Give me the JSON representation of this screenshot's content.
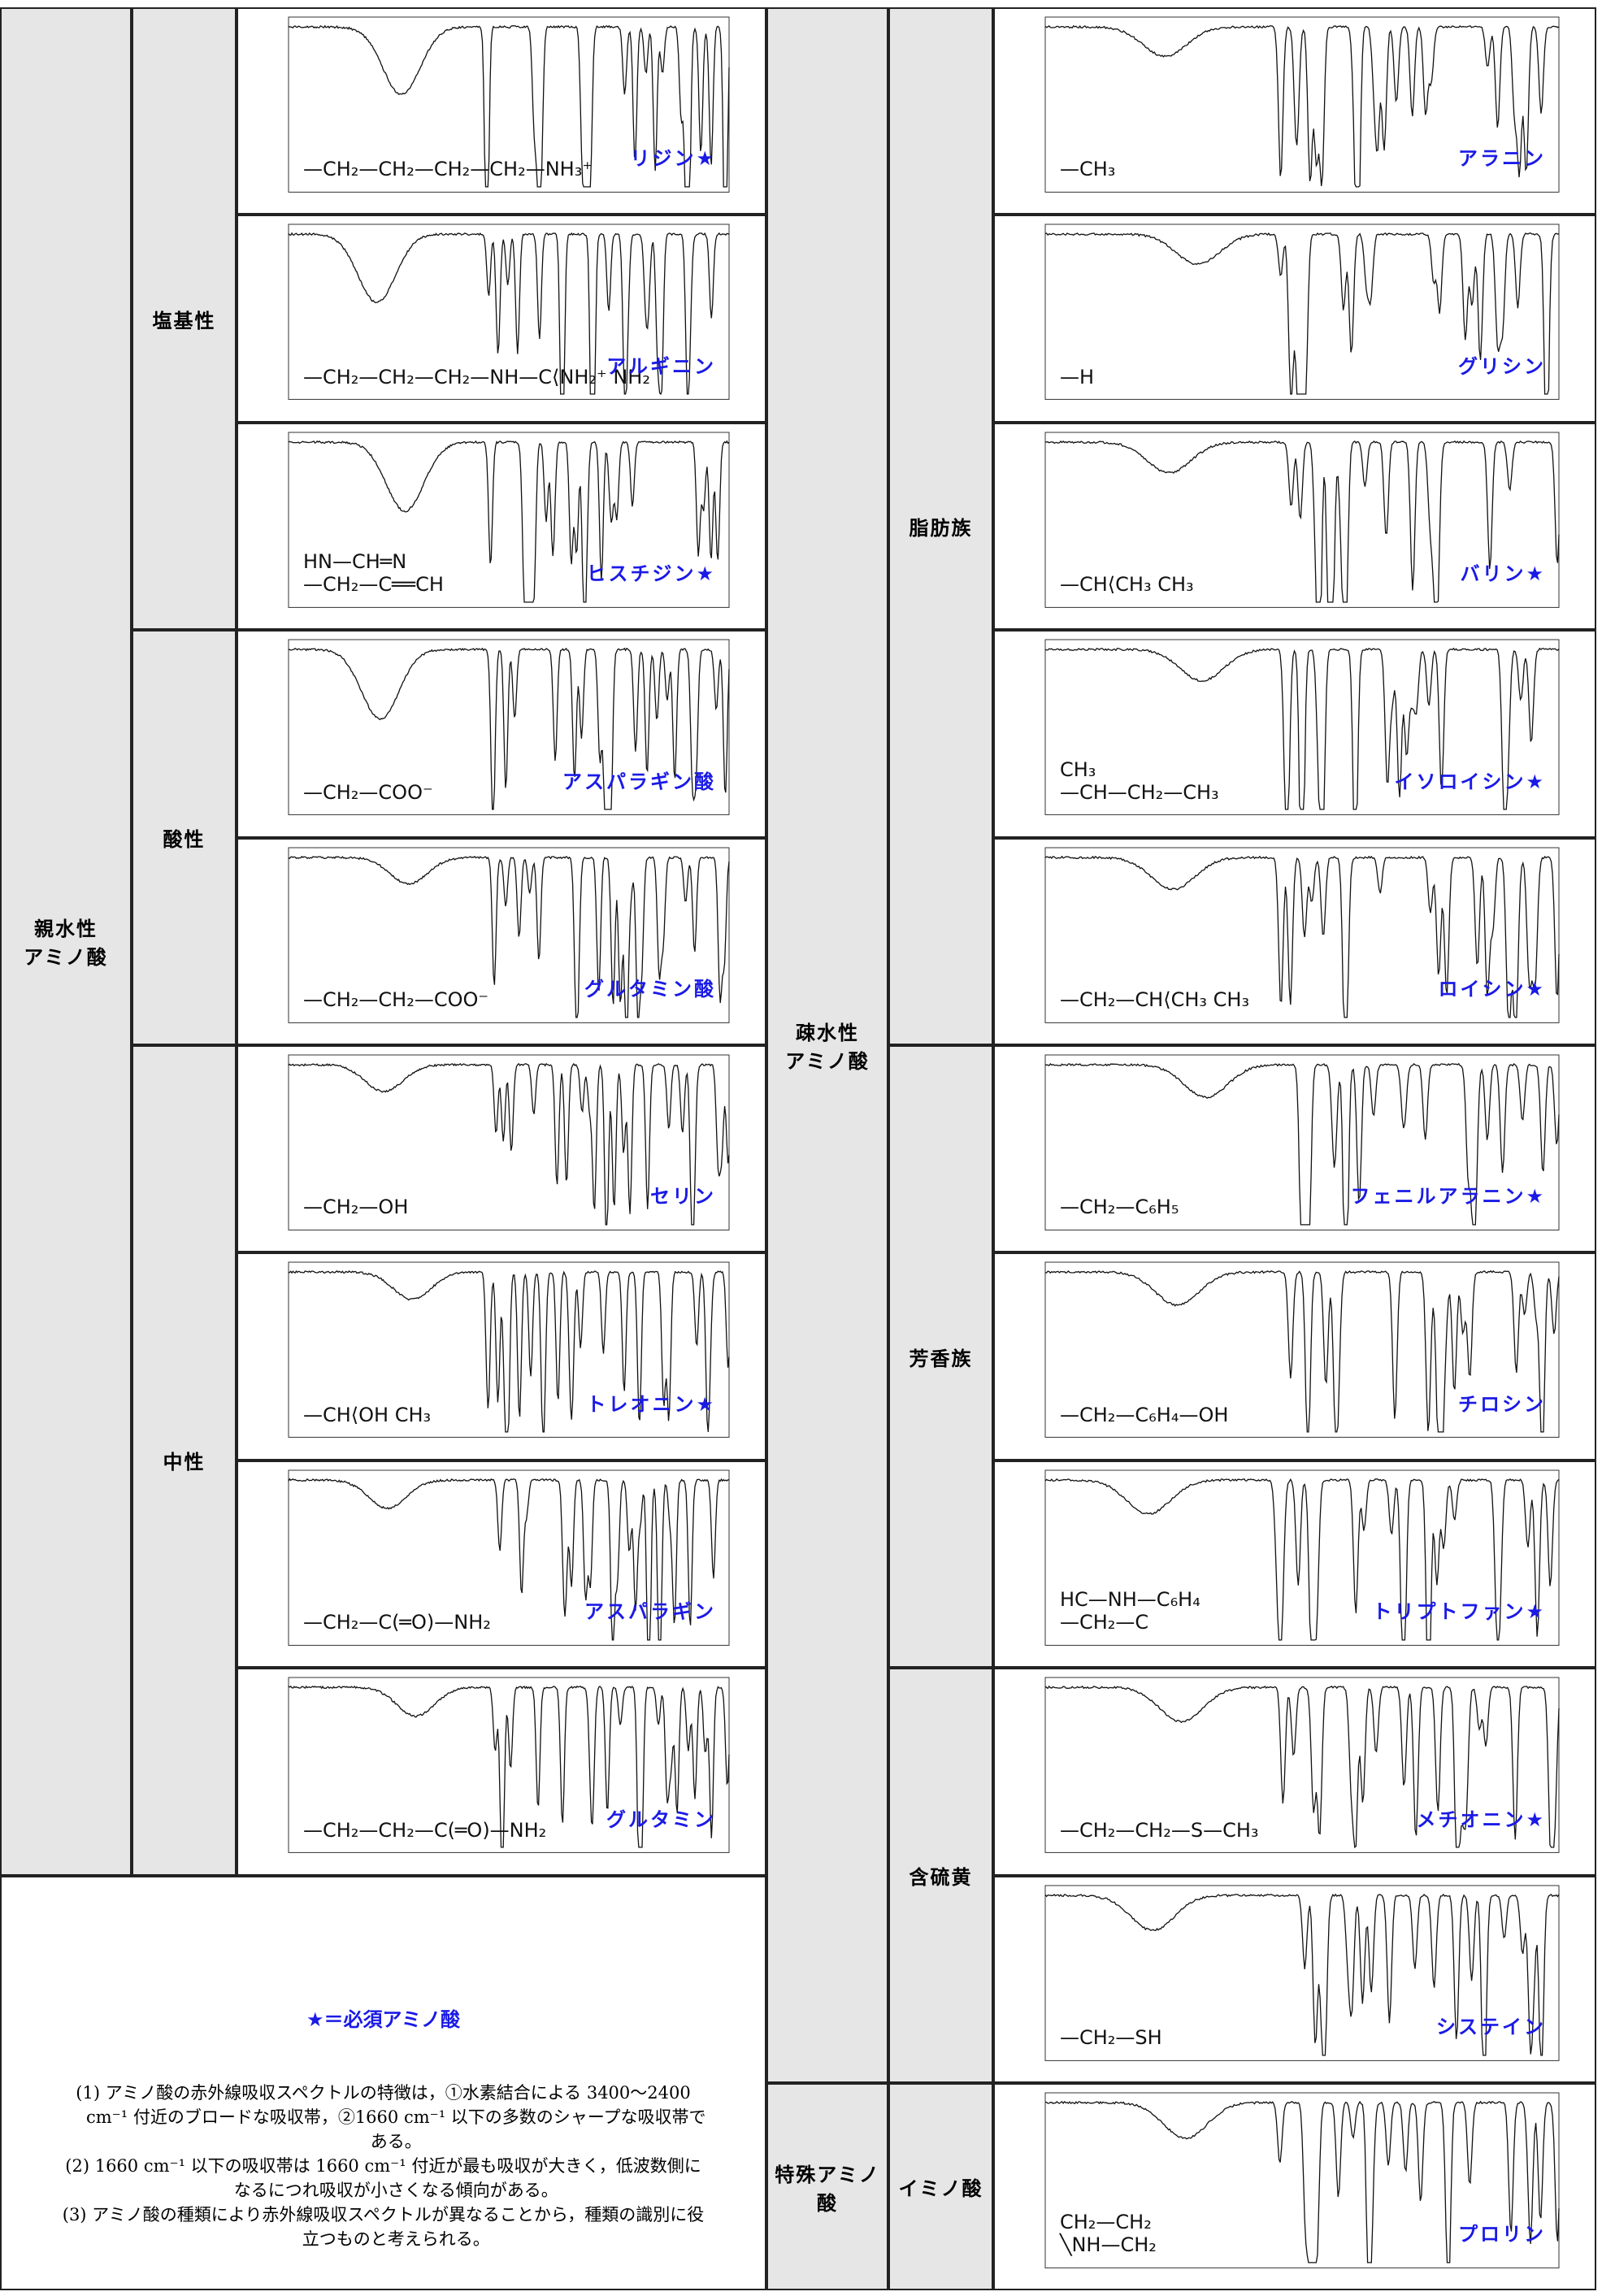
{
  "left": {
    "group": "親水性\nアミノ酸",
    "subgroups": [
      {
        "label": "塩基性",
        "items": [
          {
            "name": "リジン★",
            "formula": "—CH₂—CH₂—CH₂—CH₂—NH₃⁺"
          },
          {
            "name": "アルギニン",
            "formula": "—CH₂—CH₂—CH₂—NH—C⟨NH₂⁺ NH₂"
          },
          {
            "name": "ヒスチジン★",
            "formula": "HN—CH═N\n—CH₂—C══CH"
          }
        ]
      },
      {
        "label": "酸性",
        "items": [
          {
            "name": "アスパラギン酸",
            "formula": "—CH₂—COO⁻"
          },
          {
            "name": "グルタミン酸",
            "formula": "—CH₂—CH₂—COO⁻"
          }
        ]
      },
      {
        "label": "中性",
        "items": [
          {
            "name": "セリン",
            "formula": "—CH₂—OH"
          },
          {
            "name": "トレオニン★",
            "formula": "—CH⟨OH CH₃"
          },
          {
            "name": "アスパラギン",
            "formula": "—CH₂—C(═O)—NH₂"
          },
          {
            "name": "グルタミン",
            "formula": "—CH₂—CH₂—C(═O)—NH₂"
          }
        ]
      }
    ]
  },
  "right": {
    "group": "疎水性\nアミノ酸",
    "subgroups": [
      {
        "label": "脂肪族",
        "items": [
          {
            "name": "アラニン",
            "formula": "—CH₃"
          },
          {
            "name": "グリシン",
            "formula": "—H"
          },
          {
            "name": "バリン★",
            "formula": "—CH⟨CH₃ CH₃"
          },
          {
            "name": "イソロイシン★",
            "formula": "CH₃\n—CH—CH₂—CH₃"
          },
          {
            "name": "ロイシン★",
            "formula": "—CH₂—CH⟨CH₃ CH₃"
          }
        ]
      },
      {
        "label": "芳香族",
        "items": [
          {
            "name": "フェニルアラニン★",
            "formula": "—CH₂—C₆H₅"
          },
          {
            "name": "チロシン",
            "formula": "—CH₂—C₆H₄—OH"
          },
          {
            "name": "トリプトファン★",
            "formula": "HC—NH—C₆H₄\n—CH₂—C"
          }
        ]
      },
      {
        "label": "含硫黄",
        "items": [
          {
            "name": "メチオニン★",
            "formula": "—CH₂—CH₂—S—CH₃"
          },
          {
            "name": "システイン",
            "formula": "—CH₂—SH"
          }
        ]
      }
    ]
  },
  "special": {
    "group": "特殊アミノ酸",
    "label": "イミノ酸",
    "items": [
      {
        "name": "プロリン",
        "formula": "CH₂—CH₂\n╲NH—CH₂"
      }
    ]
  },
  "notes": {
    "legend": "★＝必須アミノ酸",
    "items": [
      "(1) アミノ酸の赤外線吸収スペクトルの特徴は，①水素結合による 3400～2400 cm⁻¹ 付近のブロードな吸収帯，②1660 cm⁻¹ 以下の多数のシャープな吸収帯である。",
      "(2) 1660 cm⁻¹ 以下の吸収帯は 1660 cm⁻¹ 付近が最も吸収が大きく，低波数側になるにつれ吸収が小さくなる傾向がある。",
      "(3) アミノ酸の種類により赤外線吸収スペクトルが異なることから，種類の識別に役立つものと考えられる。"
    ]
  }
}
